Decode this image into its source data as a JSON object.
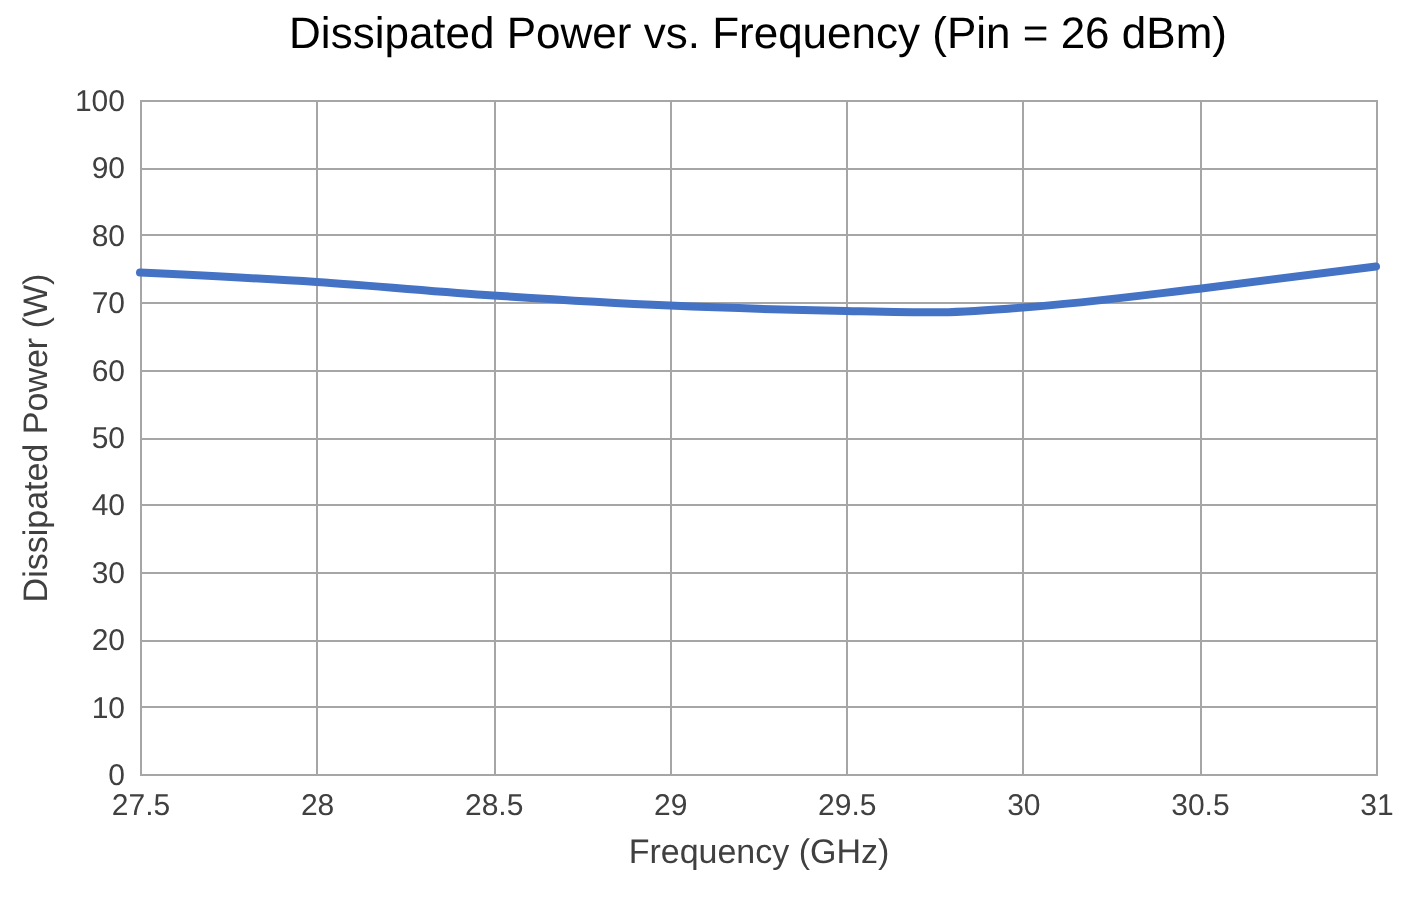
{
  "chart_data": {
    "type": "line",
    "title": "Dissipated Power vs. Frequency  (Pin = 26 dBm)",
    "xlabel": "Frequency (GHz)",
    "ylabel": "Dissipated Power (W)",
    "x": [
      27.5,
      28,
      28.5,
      29,
      29.5,
      29.75,
      30,
      30.5,
      31
    ],
    "series": [
      {
        "color": "#4472c4",
        "values": [
          74.4,
          73,
          71,
          69.5,
          68.7,
          68.5,
          69.2,
          72,
          75.3
        ]
      }
    ],
    "xlim": [
      27.5,
      31
    ],
    "xticks": [
      27.5,
      28,
      28.5,
      29,
      29.5,
      30,
      30.5,
      31
    ],
    "ylim": [
      0,
      100
    ],
    "yticks": [
      0,
      10,
      20,
      30,
      40,
      50,
      60,
      70,
      80,
      90,
      100
    ],
    "grid": true,
    "marker": "none",
    "line_style": "solid"
  }
}
